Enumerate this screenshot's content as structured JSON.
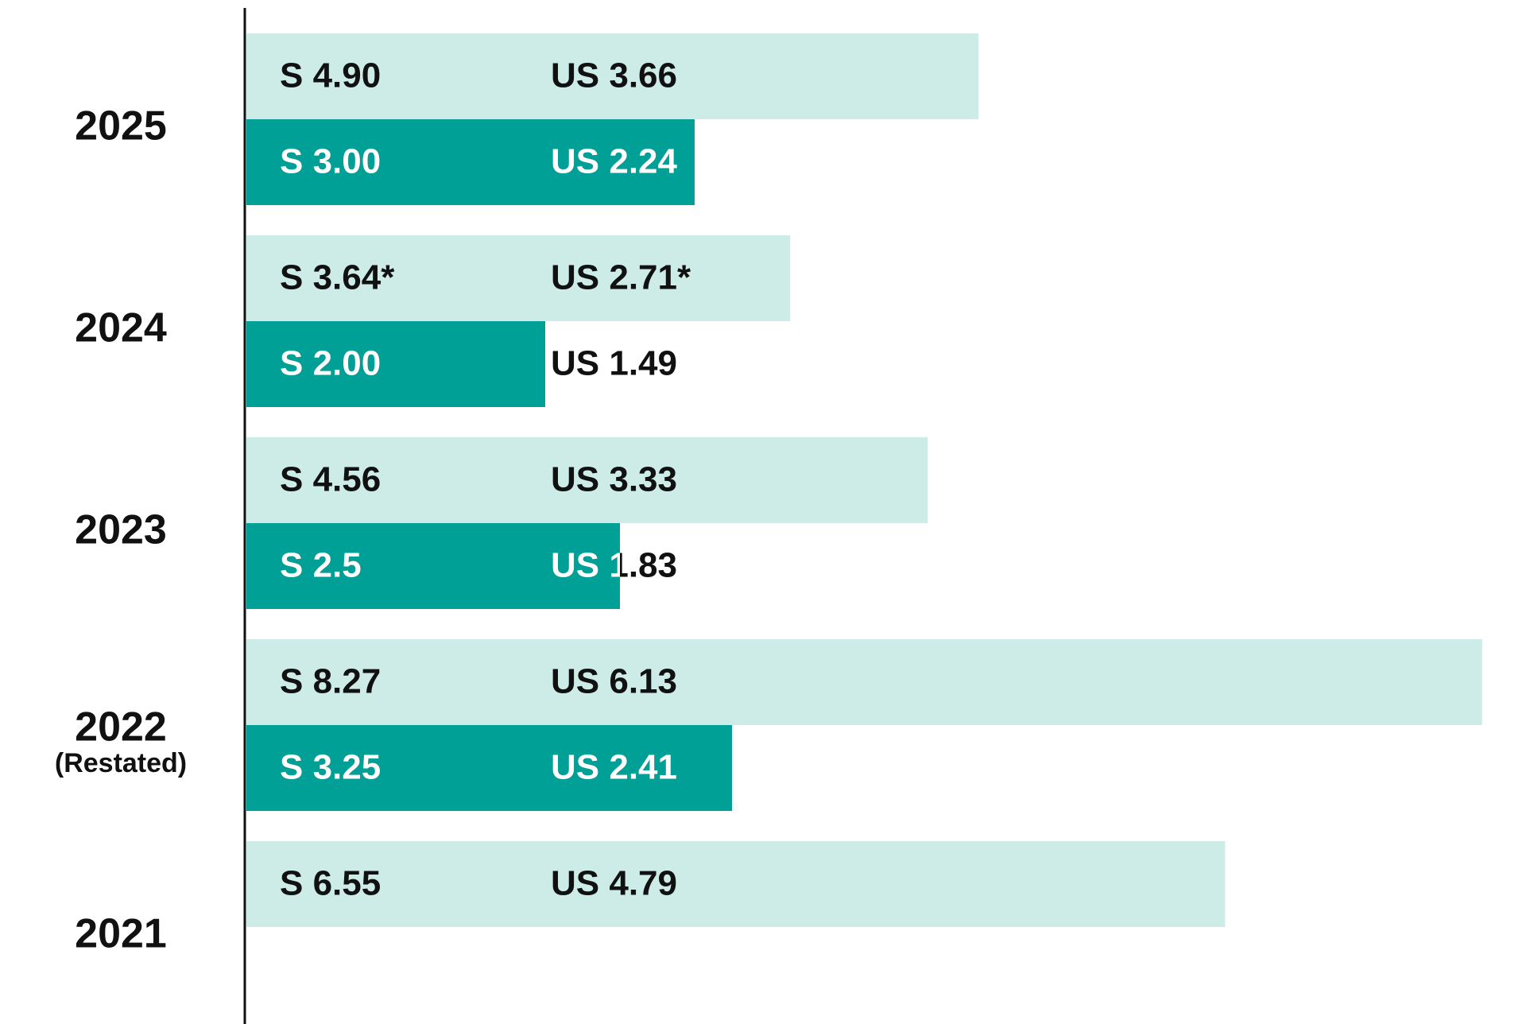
{
  "chart_data": {
    "type": "bar",
    "orientation": "horizontal",
    "title": "",
    "xlabel": "",
    "ylabel": "",
    "grid": false,
    "categories": [
      "2025",
      "2024",
      "2023",
      "2022",
      "2021"
    ],
    "category_sublabels": [
      "",
      "",
      "",
      "(Restated)",
      ""
    ],
    "xlim": [
      0,
      8.27
    ],
    "series": [
      {
        "color": "#cdece8",
        "text_color": "#111111",
        "values": [
          4.9,
          3.64,
          4.56,
          8.27,
          6.55
        ],
        "labels_primary": [
          "S 4.90",
          "S 3.64*",
          "S 4.56",
          "S 8.27",
          "S 6.55"
        ],
        "labels_secondary": [
          "US 3.66",
          "US 2.71*",
          "US 3.33",
          "US 6.13",
          "US 4.79"
        ]
      },
      {
        "color": "#00a096",
        "text_color": "#ffffff",
        "values": [
          3.0,
          2.0,
          2.5,
          3.25,
          null
        ],
        "labels_primary": [
          "S 3.00",
          "S 2.00",
          "S 2.5",
          "S 3.25",
          ""
        ],
        "labels_secondary": [
          "US 2.24",
          "US 1.49",
          "US 1.83",
          "US 2.41",
          ""
        ]
      }
    ]
  }
}
